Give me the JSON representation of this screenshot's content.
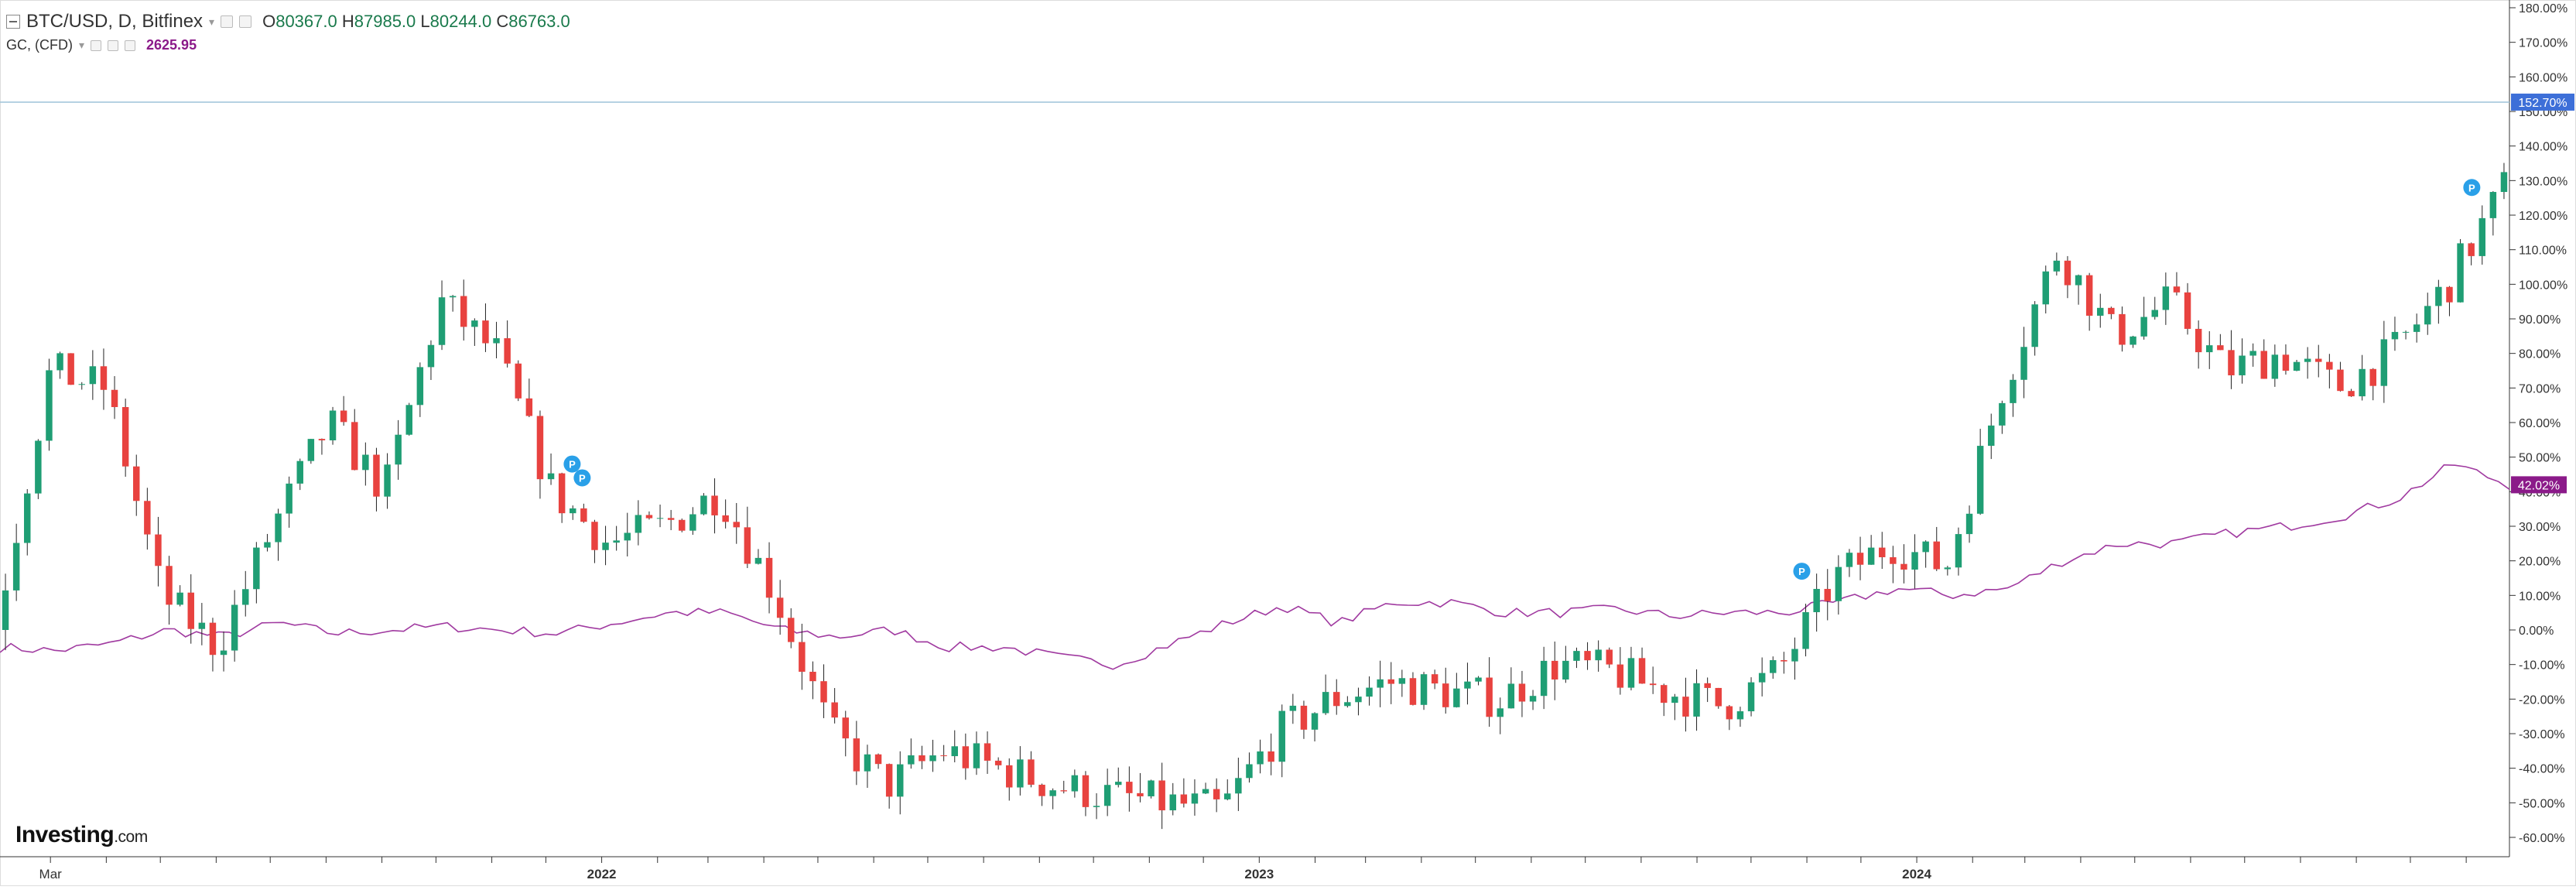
{
  "legend": {
    "symbol": "BTC/USD, D, Bitfinex",
    "ohlc": {
      "open_label": "O",
      "open": "80367.0",
      "high_label": "H",
      "high": "87985.0",
      "low_label": "L",
      "low": "80244.0",
      "close_label": "C",
      "close": "86763.0"
    },
    "compare_symbol": "GC, (CFD)",
    "compare_value": "2625.95"
  },
  "logo": {
    "brand": "Investing",
    "suffix": ".com"
  },
  "colors": {
    "up": "#1f9e74",
    "down": "#e8423f",
    "wick": "#222222",
    "gold_line": "#a03aa0",
    "btc_badge": "#3d6fd8",
    "gc_badge": "#8b1a89",
    "marker": "#2aa0e8",
    "crosshair": "#9ec4d8",
    "axis": "#333333"
  },
  "chart_data": {
    "type": "line",
    "title": "",
    "xlabel": "",
    "ylabel": "",
    "y_unit": "%",
    "ylim": [
      -65,
      182
    ],
    "x_tick_labels": [
      "Mar",
      "2022",
      "2023",
      "2024"
    ],
    "y_tick_labels": [
      "180.00%",
      "170.00%",
      "160.00%",
      "150.00%",
      "140.00%",
      "130.00%",
      "120.00%",
      "110.00%",
      "100.00%",
      "90.00%",
      "80.00%",
      "70.00%",
      "60.00%",
      "50.00%",
      "40.00%",
      "30.00%",
      "20.00%",
      "10.00%",
      "0.00%",
      "-10.00%",
      "-20.00%",
      "-30.00%",
      "-40.00%",
      "-50.00%",
      "-60.00%"
    ],
    "x": [
      "2021-02",
      "2021-03",
      "2021-04",
      "2021-05",
      "2021-06",
      "2021-07",
      "2021-08",
      "2021-09",
      "2021-10",
      "2021-11",
      "2021-12",
      "2022-01",
      "2022-02",
      "2022-03",
      "2022-04",
      "2022-05",
      "2022-06",
      "2022-07",
      "2022-08",
      "2022-09",
      "2022-10",
      "2022-11",
      "2022-12",
      "2023-01",
      "2023-02",
      "2023-03",
      "2023-04",
      "2023-05",
      "2023-06",
      "2023-07",
      "2023-08",
      "2023-09",
      "2023-10",
      "2023-11",
      "2023-12",
      "2024-01",
      "2024-02",
      "2024-03",
      "2024-04",
      "2024-05",
      "2024-06",
      "2024-07",
      "2024-08",
      "2024-09",
      "2024-10",
      "2024-11"
    ],
    "series": [
      {
        "name": "BTC/USD",
        "style": "candles",
        "values": [
          0,
          75,
          70,
          10,
          -5,
          30,
          60,
          40,
          95,
          80,
          40,
          25,
          30,
          40,
          10,
          -30,
          -45,
          -35,
          -40,
          -45,
          -48,
          -50,
          -52,
          -30,
          -20,
          -15,
          -18,
          -20,
          -10,
          -12,
          -18,
          -22,
          -12,
          15,
          25,
          18,
          70,
          110,
          85,
          95,
          75,
          80,
          70,
          80,
          100,
          128
        ],
        "badge": "152.70%",
        "markers": [
          "P",
          "P",
          "P",
          "P"
        ]
      },
      {
        "name": "GC, (CFD)",
        "style": "line",
        "values": [
          -5,
          -6,
          -4,
          0,
          -2,
          2,
          -1,
          0,
          1,
          0,
          -1,
          2,
          5,
          5,
          0,
          -2,
          0,
          -5,
          -5,
          -8,
          -10,
          -4,
          2,
          7,
          2,
          8,
          8,
          5,
          5,
          6,
          4,
          5,
          5,
          8,
          12,
          10,
          12,
          20,
          25,
          25,
          28,
          30,
          33,
          38,
          48,
          42
        ],
        "badge": "42.02%"
      }
    ],
    "crosshair_y": 152.7,
    "grid": false,
    "legend_position": "top-left"
  }
}
